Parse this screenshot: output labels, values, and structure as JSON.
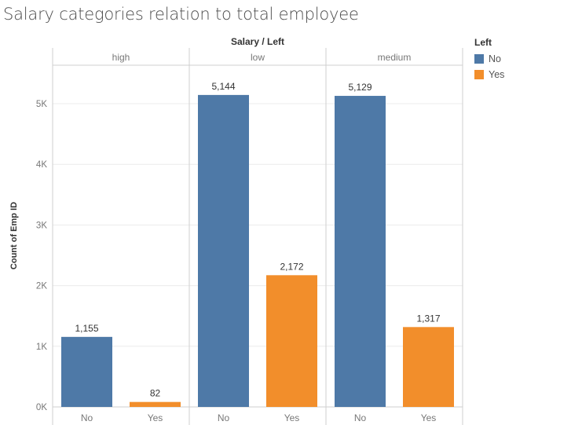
{
  "title": "Salary categories relation to total employee",
  "legend": {
    "title": "Left",
    "items": [
      {
        "label": "No",
        "color": "#4e79a7"
      },
      {
        "label": "Yes",
        "color": "#f28e2b"
      }
    ]
  },
  "chart_data": {
    "type": "bar",
    "column_header": "Salary / Left",
    "ylabel": "Count of Emp ID",
    "ylim": [
      0,
      5800
    ],
    "yticks": [
      {
        "value": 0,
        "label": "0K"
      },
      {
        "value": 1000,
        "label": "1K"
      },
      {
        "value": 2000,
        "label": "2K"
      },
      {
        "value": 3000,
        "label": "3K"
      },
      {
        "value": 4000,
        "label": "4K"
      },
      {
        "value": 5000,
        "label": "5K"
      }
    ],
    "panels": [
      {
        "name": "high",
        "bars": [
          {
            "category": "No",
            "value": 1155,
            "label": "1,155"
          },
          {
            "category": "Yes",
            "value": 82,
            "label": "82"
          }
        ]
      },
      {
        "name": "low",
        "bars": [
          {
            "category": "No",
            "value": 5144,
            "label": "5,144"
          },
          {
            "category": "Yes",
            "value": 2172,
            "label": "2,172"
          }
        ]
      },
      {
        "name": "medium",
        "bars": [
          {
            "category": "No",
            "value": 5129,
            "label": "5,129"
          },
          {
            "category": "Yes",
            "value": 1317,
            "label": "1,317"
          }
        ]
      }
    ],
    "grid": true,
    "legend_position": "right"
  }
}
